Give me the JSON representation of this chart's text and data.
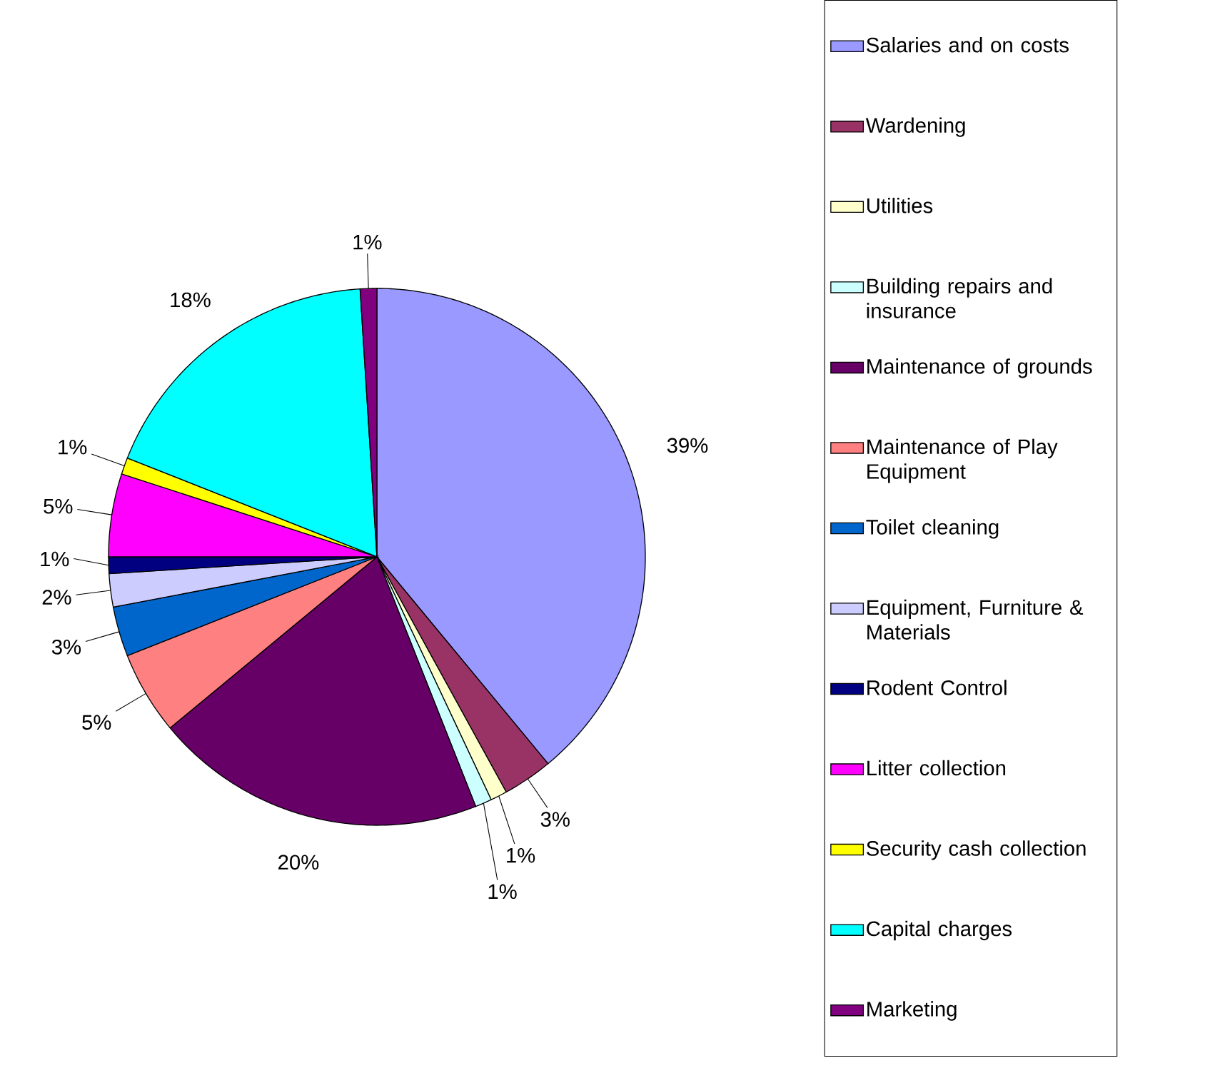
{
  "chart_data": {
    "type": "pie",
    "categories": [
      "Salaries and on costs",
      "Wardening",
      "Utilities",
      "Building repairs and insurance",
      "Maintenance of grounds",
      "Maintenance of Play Equipment",
      "Toilet cleaning",
      "Equipment, Furniture & Materials",
      "Rodent Control",
      "Litter collection",
      "Security cash collection",
      "Capital charges",
      "Marketing"
    ],
    "values": [
      39,
      3,
      1,
      1,
      20,
      5,
      3,
      2,
      1,
      5,
      1,
      18,
      1
    ],
    "value_labels": [
      "39%",
      "3%",
      "1%",
      "1%",
      "20%",
      "5%",
      "3%",
      "2%",
      "1%",
      "5%",
      "1%",
      "18%",
      "1%"
    ],
    "colors": [
      "#9999ff",
      "#993366",
      "#ffffcc",
      "#ccffff",
      "#660066",
      "#ff8080",
      "#0066cc",
      "#ccccff",
      "#000080",
      "#ff00ff",
      "#ffff00",
      "#00ffff",
      "#800080"
    ],
    "legend": "right"
  }
}
